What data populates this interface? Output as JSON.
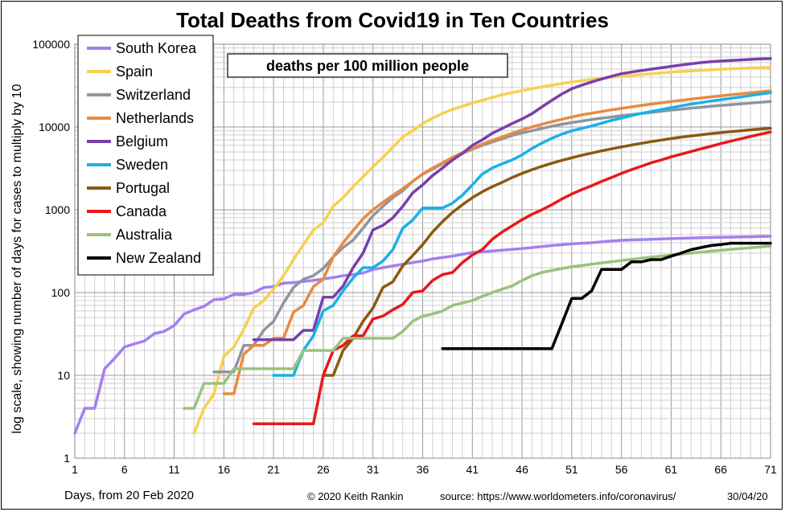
{
  "chart_data": {
    "type": "line",
    "title": "Total Deaths from Covid19 in Ten Countries",
    "subtitle": "deaths per 100 million  people",
    "ylabel": "log scale, showing number of days for cases to multiply by 10",
    "xlabel": "Days, from 20 Feb 2020",
    "y_scale": "log",
    "ylim": [
      1,
      100000
    ],
    "xlim": [
      1,
      71
    ],
    "x_ticks": [
      1,
      6,
      11,
      16,
      21,
      26,
      31,
      36,
      41,
      46,
      51,
      56,
      61,
      66,
      71
    ],
    "y_ticks": [
      "1",
      "10",
      "100",
      "1000",
      "10000",
      "100000"
    ],
    "grid": true,
    "legend_position": "top-left",
    "series": [
      {
        "name": "South Korea",
        "color": "#A47FF0",
        "x": [
          1,
          2,
          3,
          4,
          5,
          6,
          7,
          8,
          9,
          10,
          11,
          12,
          13,
          14,
          15,
          16,
          17,
          18,
          19,
          20,
          21,
          22,
          23,
          24,
          25,
          26,
          27,
          28,
          29,
          30,
          31,
          32,
          33,
          34,
          35,
          36,
          37,
          38,
          39,
          40,
          41,
          42,
          43,
          44,
          45,
          46,
          47,
          48,
          49,
          50,
          51,
          52,
          53,
          54,
          55,
          56,
          57,
          58,
          59,
          60,
          61,
          62,
          63,
          64,
          65,
          66,
          67,
          68,
          69,
          70,
          71
        ],
        "y": [
          2,
          4,
          4,
          12,
          16,
          22,
          24,
          26,
          32,
          34,
          40,
          55,
          62,
          68,
          82,
          84,
          95,
          95,
          100,
          115,
          118,
          130,
          132,
          136,
          140,
          146,
          152,
          160,
          165,
          172,
          190,
          200,
          210,
          220,
          230,
          240,
          255,
          265,
          275,
          290,
          305,
          310,
          318,
          325,
          332,
          340,
          350,
          360,
          370,
          378,
          388,
          395,
          400,
          410,
          420,
          428,
          432,
          436,
          440,
          444,
          448,
          452,
          456,
          460,
          462,
          465,
          467,
          470,
          472,
          475,
          478
        ]
      },
      {
        "name": "Spain",
        "color": "#F7D052",
        "x": [
          13,
          14,
          15,
          16,
          17,
          18,
          19,
          20,
          21,
          22,
          23,
          24,
          25,
          26,
          27,
          28,
          29,
          30,
          31,
          32,
          33,
          34,
          35,
          36,
          37,
          38,
          39,
          40,
          41,
          42,
          43,
          44,
          45,
          46,
          47,
          48,
          49,
          50,
          51,
          52,
          53,
          54,
          55,
          56,
          57,
          58,
          59,
          60,
          61,
          62,
          63,
          64,
          65,
          66,
          67,
          68,
          69,
          70,
          71
        ],
        "y": [
          2,
          4,
          6,
          17,
          22,
          36,
          65,
          80,
          110,
          160,
          250,
          380,
          570,
          700,
          1100,
          1400,
          1900,
          2500,
          3300,
          4300,
          5700,
          7600,
          9000,
          11000,
          12800,
          14600,
          16300,
          17800,
          19500,
          21000,
          22700,
          24500,
          26000,
          27500,
          29000,
          30500,
          32000,
          33500,
          35000,
          36200,
          37500,
          38700,
          40000,
          41000,
          42000,
          43000,
          44000,
          45000,
          46000,
          46800,
          47600,
          48400,
          49000,
          49800,
          50500,
          51000,
          51500,
          52000,
          52500
        ]
      },
      {
        "name": "Switzerland",
        "color": "#8E95A0",
        "x": [
          15,
          16,
          17,
          18,
          19,
          20,
          21,
          22,
          23,
          24,
          25,
          26,
          27,
          28,
          29,
          30,
          31,
          32,
          33,
          34,
          35,
          36,
          37,
          38,
          39,
          40,
          41,
          42,
          43,
          44,
          45,
          46,
          47,
          48,
          49,
          50,
          51,
          52,
          53,
          54,
          55,
          56,
          57,
          58,
          59,
          60,
          61,
          62,
          63,
          64,
          65,
          66,
          67,
          68,
          69,
          70,
          71
        ],
        "y": [
          11,
          11,
          11,
          23,
          23,
          35,
          45,
          75,
          115,
          145,
          160,
          195,
          270,
          350,
          430,
          600,
          850,
          1100,
          1400,
          1700,
          2200,
          2700,
          3100,
          3600,
          4200,
          4800,
          5400,
          6000,
          6600,
          7200,
          7900,
          8500,
          9000,
          9600,
          10200,
          10800,
          11300,
          11800,
          12300,
          12800,
          13200,
          13700,
          14100,
          14600,
          15000,
          15500,
          16000,
          16400,
          16900,
          17300,
          17800,
          18200,
          18600,
          19000,
          19500,
          19900,
          20300
        ]
      },
      {
        "name": "Netherlands",
        "color": "#E88A42",
        "x": [
          16,
          17,
          18,
          19,
          20,
          21,
          22,
          23,
          24,
          25,
          26,
          27,
          28,
          29,
          30,
          31,
          32,
          33,
          34,
          35,
          36,
          37,
          38,
          39,
          40,
          41,
          42,
          43,
          44,
          45,
          46,
          47,
          48,
          49,
          50,
          51,
          52,
          53,
          54,
          55,
          56,
          57,
          58,
          59,
          60,
          61,
          62,
          63,
          64,
          65,
          66,
          67,
          68,
          69,
          70,
          71
        ],
        "y": [
          6,
          6,
          18,
          23,
          23,
          28,
          28,
          58,
          70,
          118,
          145,
          270,
          400,
          560,
          780,
          1000,
          1230,
          1500,
          1800,
          2200,
          2700,
          3200,
          3700,
          4300,
          4900,
          5500,
          6200,
          6900,
          7600,
          8400,
          9200,
          10000,
          10800,
          11600,
          12400,
          13200,
          14000,
          14700,
          15400,
          16100,
          16800,
          17500,
          18200,
          18900,
          19600,
          20300,
          21000,
          21700,
          22400,
          23100,
          23800,
          24500,
          25200,
          25900,
          26600,
          27300
        ]
      },
      {
        "name": "Belgium",
        "color": "#7B3EAA",
        "x": [
          19,
          20,
          21,
          22,
          23,
          24,
          25,
          26,
          27,
          28,
          29,
          30,
          31,
          32,
          33,
          34,
          35,
          36,
          37,
          38,
          39,
          40,
          41,
          42,
          43,
          44,
          45,
          46,
          47,
          48,
          49,
          50,
          51,
          52,
          53,
          54,
          55,
          56,
          57,
          58,
          59,
          60,
          61,
          62,
          63,
          64,
          65,
          66,
          67,
          68,
          69,
          70,
          71
        ],
        "y": [
          27,
          27,
          27,
          27,
          27,
          35,
          35,
          88,
          88,
          120,
          200,
          300,
          570,
          650,
          800,
          1100,
          1600,
          2000,
          2600,
          3200,
          4000,
          4800,
          6000,
          7000,
          8400,
          9600,
          11000,
          12500,
          14500,
          17500,
          21000,
          25000,
          29000,
          32000,
          35000,
          38000,
          41000,
          44000,
          46000,
          48000,
          50000,
          52000,
          54000,
          56000,
          58000,
          60000,
          61500,
          62500,
          63500,
          64500,
          65500,
          66500,
          67000
        ]
      },
      {
        "name": "Sweden",
        "color": "#1BB1E6",
        "x": [
          21,
          22,
          23,
          24,
          25,
          26,
          27,
          28,
          29,
          30,
          31,
          32,
          33,
          34,
          35,
          36,
          37,
          38,
          39,
          40,
          41,
          42,
          43,
          44,
          45,
          46,
          47,
          48,
          49,
          50,
          51,
          52,
          53,
          54,
          55,
          56,
          57,
          58,
          59,
          60,
          61,
          62,
          63,
          64,
          65,
          66,
          67,
          68,
          69,
          70,
          71
        ],
        "y": [
          10,
          10,
          10,
          20,
          30,
          60,
          70,
          105,
          150,
          200,
          200,
          240,
          330,
          600,
          750,
          1050,
          1050,
          1050,
          1200,
          1500,
          2000,
          2700,
          3200,
          3600,
          4000,
          4600,
          5500,
          6400,
          7300,
          8200,
          9000,
          9600,
          10300,
          11100,
          12000,
          12800,
          13700,
          14600,
          15400,
          16200,
          17100,
          18000,
          18900,
          19700,
          20600,
          21400,
          22200,
          23000,
          24000,
          25000,
          26000
        ]
      },
      {
        "name": "Portugal",
        "color": "#8B5A0E",
        "x": [
          26,
          27,
          28,
          29,
          30,
          31,
          32,
          33,
          34,
          35,
          36,
          37,
          38,
          39,
          40,
          41,
          42,
          43,
          44,
          45,
          46,
          47,
          48,
          49,
          50,
          51,
          52,
          53,
          54,
          55,
          56,
          57,
          58,
          59,
          60,
          61,
          62,
          63,
          64,
          65,
          66,
          67,
          68,
          69,
          70,
          71
        ],
        "y": [
          10,
          10,
          20,
          28,
          45,
          65,
          115,
          135,
          210,
          280,
          380,
          540,
          720,
          930,
          1150,
          1400,
          1650,
          1900,
          2150,
          2450,
          2750,
          3050,
          3350,
          3650,
          3950,
          4250,
          4550,
          4850,
          5150,
          5450,
          5750,
          6050,
          6350,
          6650,
          6950,
          7250,
          7550,
          7800,
          8050,
          8300,
          8550,
          8800,
          9000,
          9250,
          9450,
          9650
        ]
      },
      {
        "name": "Canada",
        "color": "#E8181B",
        "x": [
          19,
          20,
          21,
          22,
          23,
          24,
          25,
          26,
          27,
          28,
          29,
          30,
          31,
          32,
          33,
          34,
          35,
          36,
          37,
          38,
          39,
          40,
          41,
          42,
          43,
          44,
          45,
          46,
          47,
          48,
          49,
          50,
          51,
          52,
          53,
          54,
          55,
          56,
          57,
          58,
          59,
          60,
          61,
          62,
          63,
          64,
          65,
          66,
          67,
          68,
          69,
          70,
          71
        ],
        "y": [
          2.6,
          2.6,
          2.6,
          2.6,
          2.6,
          2.6,
          2.6,
          10,
          20,
          23,
          30,
          30,
          48,
          52,
          62,
          72,
          100,
          105,
          140,
          165,
          175,
          230,
          285,
          330,
          440,
          540,
          640,
          760,
          880,
          1000,
          1150,
          1350,
          1550,
          1750,
          1950,
          2200,
          2450,
          2750,
          3050,
          3350,
          3700,
          4000,
          4350,
          4700,
          5050,
          5450,
          5850,
          6300,
          6750,
          7200,
          7700,
          8200,
          8700
        ]
      },
      {
        "name": "Australia",
        "color": "#9AC27D",
        "x": [
          12,
          13,
          14,
          15,
          16,
          17,
          18,
          19,
          20,
          21,
          22,
          23,
          24,
          25,
          26,
          27,
          28,
          29,
          30,
          31,
          32,
          33,
          34,
          35,
          36,
          37,
          38,
          39,
          40,
          41,
          42,
          43,
          44,
          45,
          46,
          47,
          48,
          49,
          50,
          51,
          52,
          53,
          54,
          55,
          56,
          57,
          58,
          59,
          60,
          61,
          62,
          63,
          64,
          65,
          66,
          67,
          68,
          69,
          70,
          71
        ],
        "y": [
          4,
          4,
          8,
          8,
          8,
          12,
          12,
          12,
          12,
          12,
          12,
          12,
          20,
          20,
          20,
          20,
          28,
          28,
          28,
          28,
          28,
          28,
          34,
          45,
          52,
          55,
          60,
          70,
          75,
          80,
          90,
          100,
          110,
          120,
          140,
          160,
          175,
          185,
          195,
          205,
          212,
          220,
          228,
          236,
          244,
          252,
          260,
          268,
          276,
          284,
          292,
          300,
          308,
          316,
          324,
          332,
          340,
          348,
          356,
          364
        ]
      },
      {
        "name": "New Zealand",
        "color": "#000000",
        "x": [
          38,
          39,
          40,
          41,
          42,
          43,
          44,
          45,
          46,
          47,
          48,
          49,
          50,
          51,
          52,
          53,
          54,
          55,
          56,
          57,
          58,
          59,
          60,
          61,
          62,
          63,
          64,
          65,
          66,
          67,
          68,
          69,
          70,
          71
        ],
        "y": [
          21,
          21,
          21,
          21,
          21,
          21,
          21,
          21,
          21,
          21,
          21,
          21,
          42,
          85,
          85,
          105,
          190,
          190,
          190,
          235,
          235,
          250,
          250,
          275,
          300,
          330,
          350,
          370,
          380,
          395,
          395,
          395,
          395,
          395
        ]
      }
    ]
  },
  "footer": {
    "copyright": "© 2020  Keith  Rankin",
    "source": "source:  https://www.worldometers.info/coronavirus/",
    "date": "30/04/20"
  }
}
